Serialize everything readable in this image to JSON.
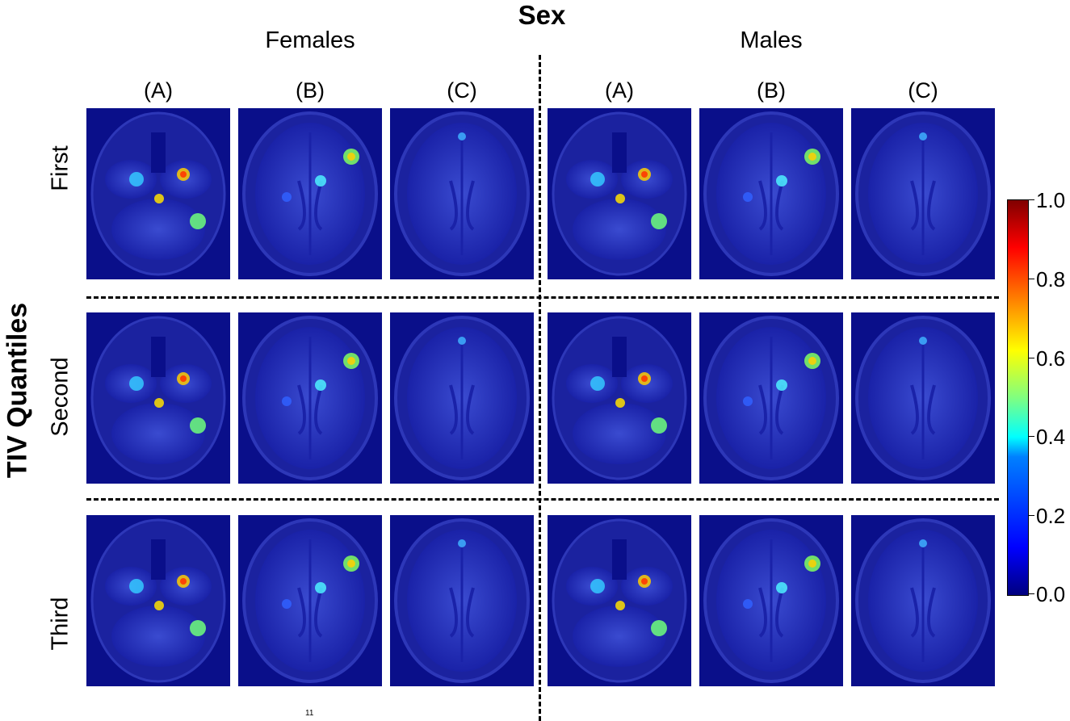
{
  "figure": {
    "title": "Sex",
    "groups": [
      "Females",
      "Males"
    ],
    "columns": [
      "(A)",
      "(B)",
      "(C)"
    ],
    "row_axis_label": "TIV Quantiles",
    "rows": [
      "First",
      "Second",
      "Third"
    ],
    "colorbar_ticks": [
      "1.0",
      "0.8",
      "0.6",
      "0.4",
      "0.2",
      "0.0"
    ],
    "page_number": "11"
  }
}
